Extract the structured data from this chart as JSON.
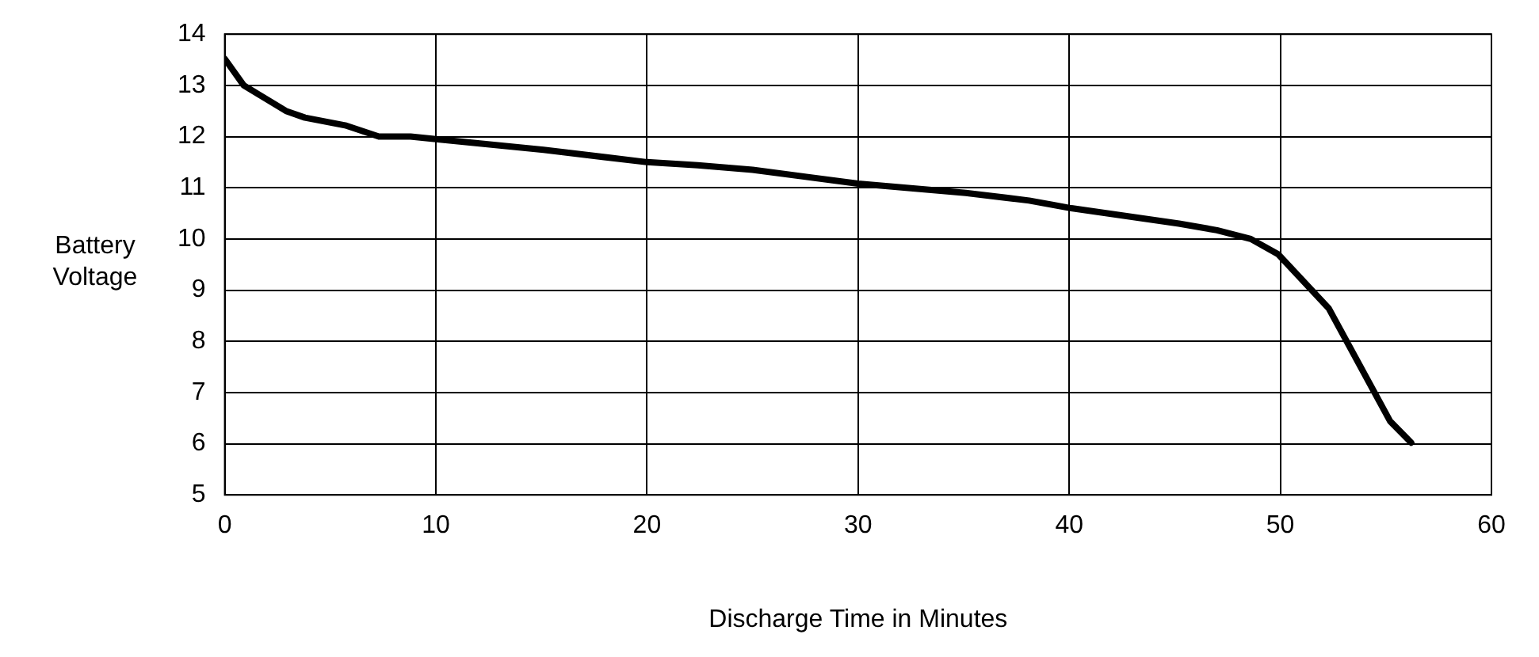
{
  "chart_data": {
    "type": "line",
    "xlabel": "Discharge Time in Minutes",
    "ylabel": "Battery Voltage",
    "x": [
      0,
      0.9,
      2.9,
      3.8,
      5.7,
      7.3,
      8.8,
      10,
      15.1,
      20,
      22.4,
      25,
      30,
      35.1,
      38.1,
      40.1,
      45.2,
      47,
      48.6,
      49.9,
      52.3,
      55.2,
      56.2
    ],
    "series": [
      {
        "color": "#000000",
        "values": [
          13.52,
          13.0,
          12.5,
          12.37,
          12.22,
          12.0,
          12.0,
          11.95,
          11.74,
          11.5,
          11.44,
          11.35,
          11.08,
          10.9,
          10.75,
          10.6,
          10.3,
          10.17,
          10.0,
          9.7,
          8.64,
          6.44,
          6.02
        ]
      }
    ],
    "xlim": [
      0,
      60
    ],
    "xticks": [
      0,
      10,
      20,
      30,
      40,
      50,
      60
    ],
    "ylim": [
      5,
      14
    ],
    "yticks": [
      5,
      6,
      7,
      8,
      9,
      10,
      11,
      12,
      13,
      14
    ],
    "grid": true,
    "legend": false,
    "marker": "none",
    "line_style": "solid"
  }
}
